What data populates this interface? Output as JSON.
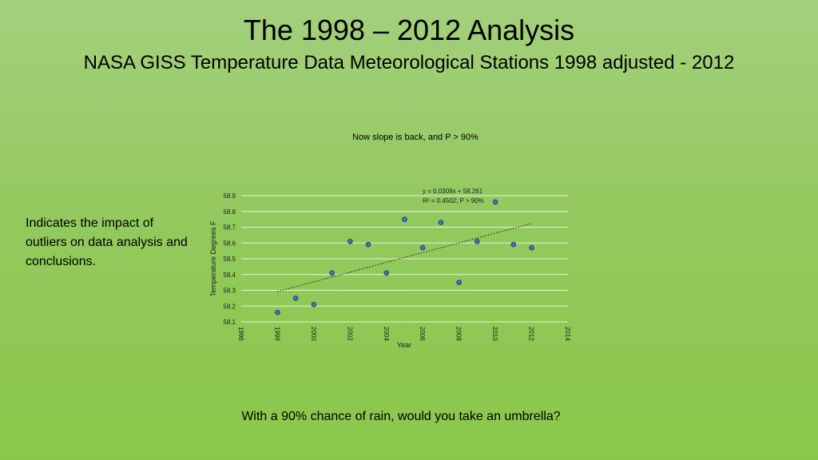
{
  "slide": {
    "title": "The 1998 – 2012 Analysis",
    "subtitle": "NASA GISS Temperature Data Meteorological Stations 1998 adjusted - 2012",
    "side_note": "Indicates the impact of outliers on data analysis and conclusions.",
    "question": "With a 90% chance of rain, would you take an umbrella?"
  },
  "chart_data": {
    "type": "scatter",
    "title": "Now slope is back, and P > 90%",
    "xlabel": "Year",
    "ylabel": "Temperature Degrees F",
    "xlim": [
      1996,
      2014
    ],
    "ylim": [
      58.1,
      58.9
    ],
    "xticks": [
      "1996",
      "1998",
      "2000",
      "2002",
      "2004",
      "2006",
      "2008",
      "2010",
      "2012",
      "2014"
    ],
    "yticks": [
      "58.1",
      "58.2",
      "58.3",
      "58.4",
      "58.5",
      "58.6",
      "58.7",
      "58.8",
      "58.9"
    ],
    "grid": "horizontal",
    "series": [
      {
        "x": [
          1998,
          1999,
          2000,
          2001,
          2002,
          2003,
          2004,
          2005,
          2006,
          2007,
          2008,
          2009,
          2010,
          2011,
          2012
        ],
        "y": [
          58.16,
          58.25,
          58.21,
          58.41,
          58.61,
          58.59,
          58.41,
          58.75,
          58.57,
          58.73,
          58.35,
          58.61,
          58.86,
          58.59,
          58.57
        ]
      }
    ],
    "trendline": {
      "equation": "y = 0.0309x + 58.261",
      "r2_label": "R² = 0.4502; P > 90%",
      "x_range": [
        1998,
        2012
      ],
      "y_values": [
        58.292,
        58.724
      ]
    },
    "colors": {
      "marker_fill": "#4472c4",
      "marker_stroke": "#1f3f7a",
      "grid": "#e6f2da",
      "trend": "#1a1a1a"
    }
  }
}
